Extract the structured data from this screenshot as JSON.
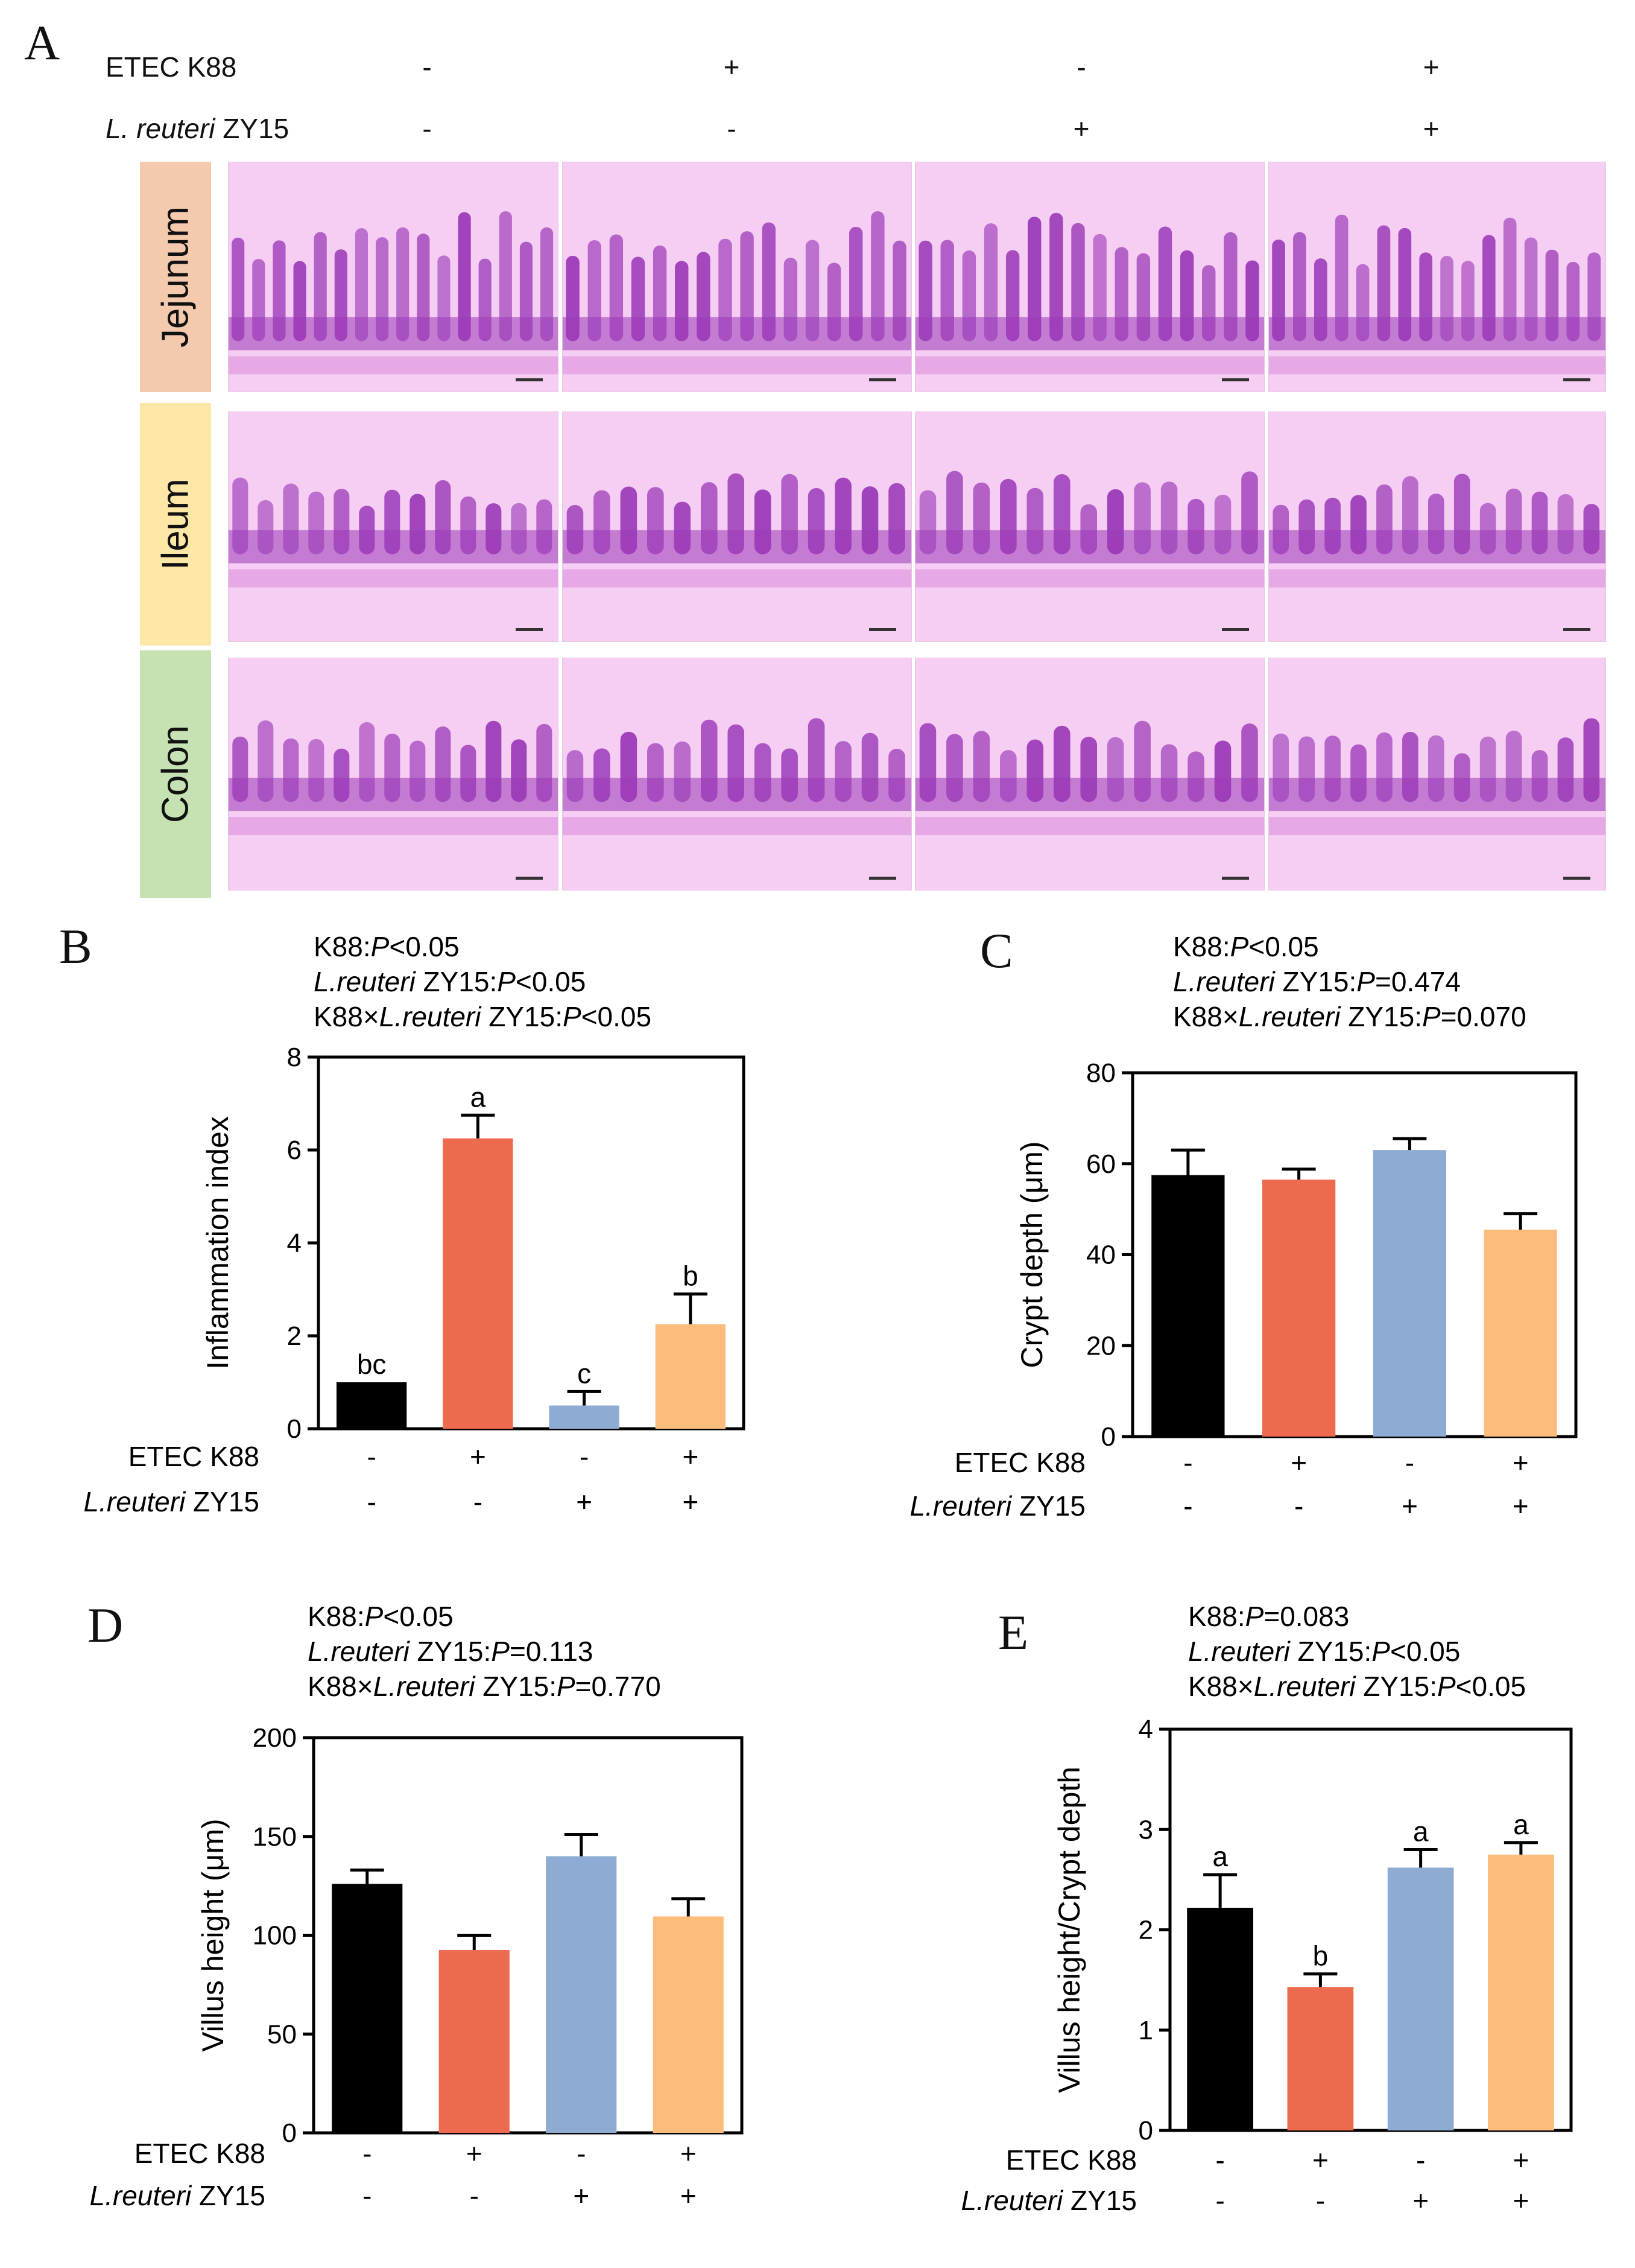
{
  "figure": {
    "panel_letters": [
      "A",
      "B",
      "C",
      "D",
      "E"
    ],
    "row_labels": {
      "etec": "ETEC K88",
      "reuteri_italic": "L. reuteri",
      "reuteri_plain": " ZY15"
    },
    "conditions": {
      "etec": [
        "-",
        "+",
        "-",
        "+"
      ],
      "reuteri": [
        "-",
        "-",
        "+",
        "+"
      ]
    },
    "tissues": [
      {
        "name": "Jejunum",
        "color": "#f5c9ad"
      },
      {
        "name": "Ileum",
        "color": "#fde7a6"
      },
      {
        "name": "Colon",
        "color": "#c6e2b3"
      }
    ],
    "bar_colors": [
      "#000000",
      "#ed6a4e",
      "#8eacd3",
      "#fcbd7c"
    ],
    "stain_colors": {
      "tissue": "#9b3ab8",
      "background": "#f6cdf3"
    }
  },
  "chart_data": [
    {
      "panel": "B",
      "type": "bar",
      "categories": [
        "-/-",
        "+/-",
        "-/+",
        "+/+"
      ],
      "values": [
        1.0,
        6.25,
        0.5,
        2.25
      ],
      "errors": [
        0.0,
        0.5,
        0.3,
        0.65
      ],
      "letters": [
        "bc",
        "a",
        "c",
        "b"
      ],
      "ylabel": "Inflammation index",
      "ylim": [
        0,
        8
      ],
      "yticks": [
        "0",
        "2",
        "4",
        "6",
        "8"
      ],
      "ytick_values": [
        0,
        2,
        4,
        6,
        8
      ],
      "stats": [
        [
          "K88:",
          "P",
          "<0.05"
        ],
        [
          "L.reuteri",
          " ZY15:",
          "P",
          "<0.05"
        ],
        [
          "K88×",
          "L.reuteri",
          " ZY15:",
          "P",
          "<0.05"
        ]
      ],
      "x_rows": [
        {
          "label": "ETEC K88",
          "values": [
            "-",
            "+",
            "-",
            "+"
          ]
        },
        {
          "label_italic": "L.reuteri",
          "label": " ZY15",
          "values": [
            "-",
            "-",
            "+",
            "+"
          ]
        }
      ]
    },
    {
      "panel": "C",
      "type": "bar",
      "categories": [
        "-/-",
        "+/-",
        "-/+",
        "+/+"
      ],
      "values": [
        57.5,
        56.5,
        63.0,
        45.5
      ],
      "errors": [
        5.5,
        2.3,
        2.5,
        3.5
      ],
      "letters": [
        "",
        "",
        "",
        ""
      ],
      "ylabel": "Crypt depth (μm)",
      "ylim": [
        0,
        80
      ],
      "yticks": [
        "0",
        "20",
        "40",
        "60",
        "80"
      ],
      "ytick_values": [
        0,
        20,
        40,
        60,
        80
      ],
      "stats": [
        [
          "K88:",
          "P",
          "<0.05"
        ],
        [
          "L.reuteri",
          " ZY15:",
          "P",
          "=0.474"
        ],
        [
          "K88×",
          "L.reuteri",
          " ZY15:",
          "P",
          "=0.070"
        ]
      ],
      "x_rows": [
        {
          "label": "ETEC K88",
          "values": [
            "-",
            "+",
            "-",
            "+"
          ]
        },
        {
          "label_italic": "L.reuteri",
          "label": " ZY15",
          "values": [
            "-",
            "-",
            "+",
            "+"
          ]
        }
      ]
    },
    {
      "panel": "D",
      "type": "bar",
      "categories": [
        "-/-",
        "+/-",
        "-/+",
        "+/+"
      ],
      "values": [
        126,
        92.5,
        140,
        109.5
      ],
      "errors": [
        7,
        7.5,
        11,
        9
      ],
      "letters": [
        "",
        "",
        "",
        ""
      ],
      "ylabel": "Villus height (μm)",
      "ylim": [
        0,
        200
      ],
      "yticks": [
        "0",
        "50",
        "100",
        "150",
        "200"
      ],
      "ytick_values": [
        0,
        50,
        100,
        150,
        200
      ],
      "stats": [
        [
          "K88:",
          "P",
          "<0.05"
        ],
        [
          "L.reuteri",
          " ZY15:",
          "P",
          "=0.113"
        ],
        [
          "K88×",
          "L.reuteri",
          " ZY15:",
          "P",
          "=0.770"
        ]
      ],
      "x_rows": [
        {
          "label": "ETEC K88",
          "values": [
            "-",
            "+",
            "-",
            "+"
          ]
        },
        {
          "label_italic": "L.reuteri",
          "label": " ZY15",
          "values": [
            "-",
            "-",
            "+",
            "+"
          ]
        }
      ]
    },
    {
      "panel": "E",
      "type": "bar",
      "categories": [
        "-/-",
        "+/-",
        "-/+",
        "+/+"
      ],
      "values": [
        2.22,
        1.43,
        2.62,
        2.75
      ],
      "errors": [
        0.33,
        0.13,
        0.18,
        0.12
      ],
      "letters": [
        "a",
        "b",
        "a",
        "a"
      ],
      "ylabel": "Villus height/Crypt depth",
      "ylim": [
        0,
        4
      ],
      "yticks": [
        "0",
        "1",
        "2",
        "3",
        "4"
      ],
      "ytick_values": [
        0,
        1,
        2,
        3,
        4
      ],
      "stats": [
        [
          "K88:",
          "P",
          "=0.083"
        ],
        [
          "L.reuteri",
          " ZY15:",
          "P",
          "<0.05"
        ],
        [
          "K88×",
          "L.reuteri",
          " ZY15:",
          "P",
          "<0.05"
        ]
      ],
      "x_rows": [
        {
          "label": "ETEC K88",
          "values": [
            "-",
            "+",
            "-",
            "+"
          ]
        },
        {
          "label_italic": "L.reuteri",
          "label": " ZY15",
          "values": [
            "-",
            "-",
            "+",
            "+"
          ]
        }
      ]
    }
  ]
}
